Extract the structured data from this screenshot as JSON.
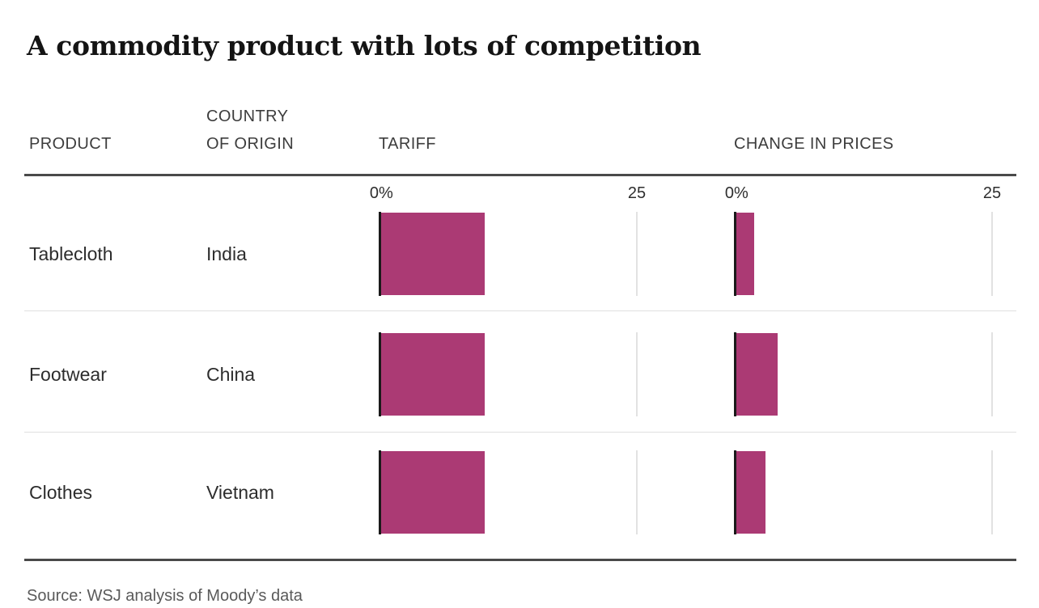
{
  "title": "A commodity product with lots of competition",
  "source": "Source: WSJ analysis of Moody’s data",
  "columns": {
    "product": "PRODUCT",
    "country_line1": "COUNTRY",
    "country_line2": "OF ORIGIN",
    "tariff": "TARIFF",
    "prices": "CHANGE IN PRICES"
  },
  "axis": {
    "zero_label": "0%",
    "max_label": "25"
  },
  "colors": {
    "bar": "#ab3a74",
    "axis_line": "#1a1a1a",
    "gridline": "#e2e2e2",
    "rule": "#4a4a4a",
    "separator": "#e0e0e0"
  },
  "chart_data": {
    "type": "bar",
    "orientation": "horizontal",
    "title": "A commodity product with lots of competition",
    "categories": [
      "Tablecloth — India",
      "Footwear — China",
      "Clothes — Vietnam"
    ],
    "series": [
      {
        "name": "Tariff",
        "values": [
          10,
          10,
          10
        ]
      },
      {
        "name": "Change in prices",
        "values": [
          1.7,
          4,
          2.8
        ]
      }
    ],
    "rows": [
      {
        "product": "Tablecloth",
        "country": "India",
        "tariff_pct": 10,
        "price_change_pct": 1.7
      },
      {
        "product": "Footwear",
        "country": "China",
        "tariff_pct": 10,
        "price_change_pct": 4
      },
      {
        "product": "Clothes",
        "country": "Vietnam",
        "tariff_pct": 10,
        "price_change_pct": 2.8
      }
    ],
    "xlim": [
      0,
      25
    ],
    "unit": "%",
    "tick_labels": [
      "0%",
      "25"
    ],
    "grid": "single-line-at-25",
    "legend": "none"
  }
}
